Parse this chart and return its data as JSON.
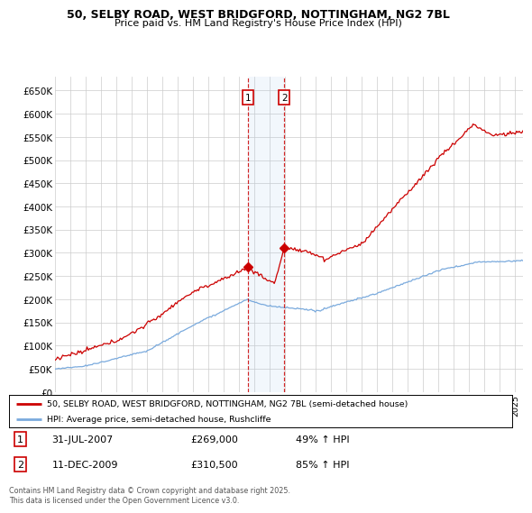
{
  "title_line1": "50, SELBY ROAD, WEST BRIDGFORD, NOTTINGHAM, NG2 7BL",
  "title_line2": "Price paid vs. HM Land Registry's House Price Index (HPI)",
  "ylim": [
    0,
    680000
  ],
  "yticks": [
    0,
    50000,
    100000,
    150000,
    200000,
    250000,
    300000,
    350000,
    400000,
    450000,
    500000,
    550000,
    600000,
    650000
  ],
  "ytick_labels": [
    "£0",
    "£50K",
    "£100K",
    "£150K",
    "£200K",
    "£250K",
    "£300K",
    "£350K",
    "£400K",
    "£450K",
    "£500K",
    "£550K",
    "£600K",
    "£650K"
  ],
  "sale1_date": 2007.58,
  "sale1_price": 269000,
  "sale1_text": "31-JUL-2007",
  "sale1_price_str": "£269,000",
  "sale1_hpi": "49% ↑ HPI",
  "sale2_date": 2009.94,
  "sale2_price": 310500,
  "sale2_text": "11-DEC-2009",
  "sale2_price_str": "£310,500",
  "sale2_hpi": "85% ↑ HPI",
  "legend_line1": "50, SELBY ROAD, WEST BRIDGFORD, NOTTINGHAM, NG2 7BL (semi-detached house)",
  "legend_line2": "HPI: Average price, semi-detached house, Rushcliffe",
  "footer": "Contains HM Land Registry data © Crown copyright and database right 2025.\nThis data is licensed under the Open Government Licence v3.0.",
  "red_color": "#cc0000",
  "blue_color": "#7aaadd",
  "grid_color": "#cccccc",
  "bg_color": "#ffffff",
  "shade_color": "#ddeeff",
  "xlim_start": 1995.0,
  "xlim_end": 2025.5
}
